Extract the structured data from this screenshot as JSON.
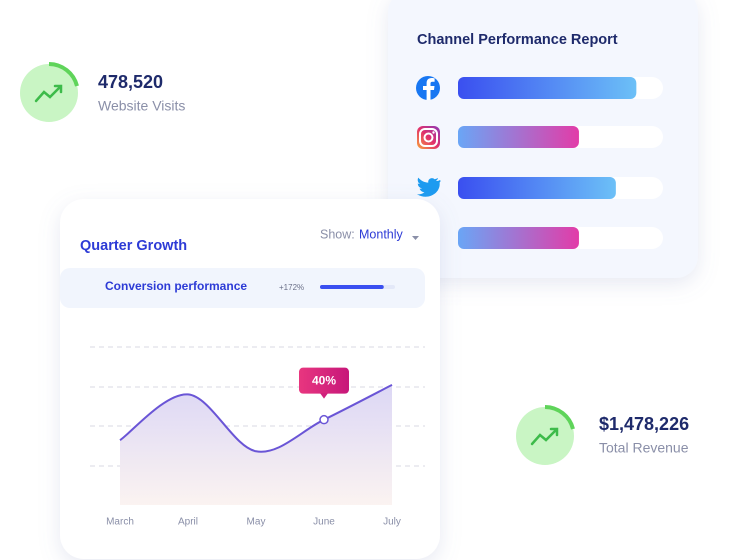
{
  "stats": [
    {
      "value": "478,520",
      "label": "Website Visits"
    },
    {
      "value": "$1,478,226",
      "label": "Total Revenue"
    }
  ],
  "report": {
    "title": "Channel Performance Report",
    "bars": [
      87,
      59,
      77,
      59
    ]
  },
  "growth": {
    "title": "Quarter Growth",
    "show_label": "Show:",
    "show_value": "Monthly",
    "conversion": {
      "label": "Conversion performance",
      "change": "+172%",
      "bar": 85
    },
    "chart_data": {
      "type": "line",
      "categories": [
        "March",
        "April",
        "May",
        "June",
        "July"
      ],
      "values": [
        41,
        70,
        34,
        54,
        76
      ],
      "ylim": [
        0,
        100
      ],
      "color": "#6a55d6",
      "annotation": "40%"
    }
  }
}
